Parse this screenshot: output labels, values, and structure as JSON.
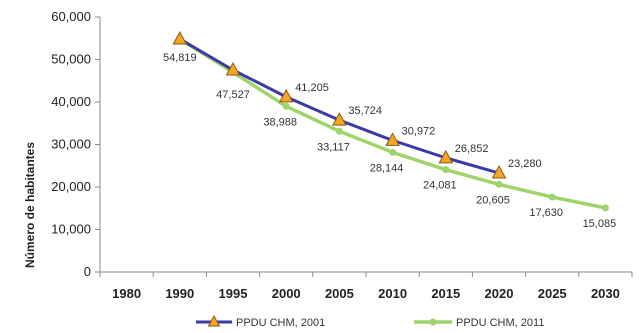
{
  "chart_data": {
    "type": "line",
    "xlabel": "",
    "ylabel": "Número de habitantes",
    "x": [
      1980,
      1990,
      1995,
      2000,
      2005,
      2010,
      2015,
      2020,
      2025,
      2030
    ],
    "ylim": [
      0,
      60000
    ],
    "yticks": [
      "0",
      "10,000",
      "20,000",
      "30,000",
      "40,000",
      "50,000",
      "60,000"
    ],
    "ytick_values": [
      0,
      10000,
      20000,
      30000,
      40000,
      50000,
      60000
    ],
    "grid": false,
    "legend_position": "bottom",
    "series": [
      {
        "name": "PPDU CHM, 2001",
        "color": "#3a3aa8",
        "marker_color": "#f5a623",
        "marker": "triangle",
        "x": [
          1990,
          1995,
          2000,
          2005,
          2010,
          2015,
          2020
        ],
        "values": [
          54819,
          47527,
          41205,
          35724,
          30972,
          26852,
          23280
        ],
        "labels": [
          "54,819",
          "47,527",
          "41,205",
          "35,724",
          "30,972",
          "26,852",
          "23,280"
        ]
      },
      {
        "name": "PPDU CHM, 2011",
        "color": "#9fd46a",
        "marker": "circle",
        "x": [
          1990,
          1995,
          2000,
          2005,
          2010,
          2015,
          2020,
          2025,
          2030
        ],
        "values": [
          54819,
          47000,
          38988,
          33117,
          28144,
          24081,
          20605,
          17630,
          15085
        ],
        "labels": [
          "",
          "",
          "38,988",
          "33,117",
          "28,144",
          "24,081",
          "20,605",
          "17,630",
          "15,085"
        ]
      }
    ]
  }
}
